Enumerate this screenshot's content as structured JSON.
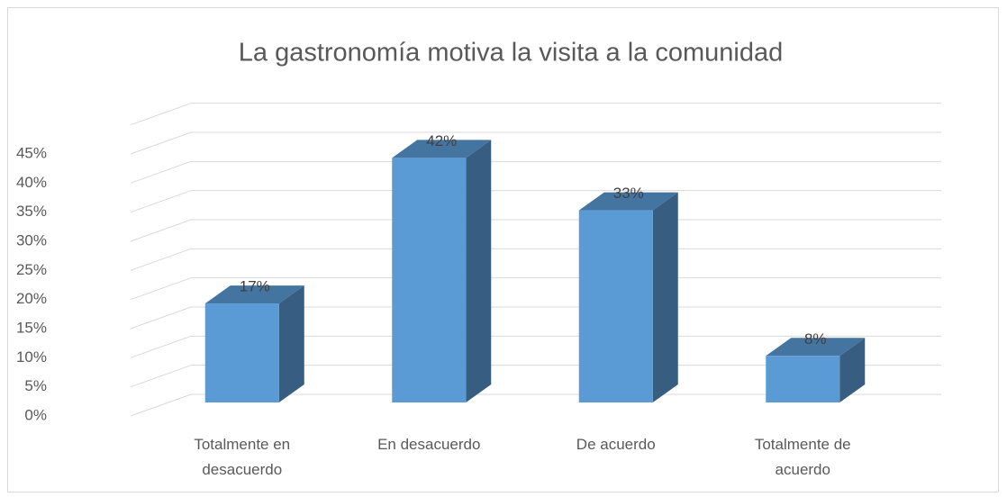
{
  "chart_data": {
    "type": "bar3d",
    "title": "La gastronomía motiva la visita a la comunidad",
    "categories": [
      "Totalmente en desacuerdo",
      "En desacuerdo",
      "De acuerdo",
      "Totalmente de acuerdo"
    ],
    "values": [
      17,
      42,
      33,
      8
    ],
    "value_labels": [
      "17%",
      "42%",
      "33%",
      "8%"
    ],
    "color": "#5b9bd5",
    "ylim": [
      0,
      50
    ],
    "yticks": [
      {
        "value": 0,
        "label": "0%"
      },
      {
        "value": 5,
        "label": "5%"
      },
      {
        "value": 10,
        "label": "10%"
      },
      {
        "value": 15,
        "label": "15%"
      },
      {
        "value": 20,
        "label": "20%"
      },
      {
        "value": 25,
        "label": "25%"
      },
      {
        "value": 30,
        "label": "30%"
      },
      {
        "value": 35,
        "label": "35%"
      },
      {
        "value": 40,
        "label": "40%"
      },
      {
        "value": 45,
        "label": "45%"
      }
    ],
    "grid": true
  }
}
